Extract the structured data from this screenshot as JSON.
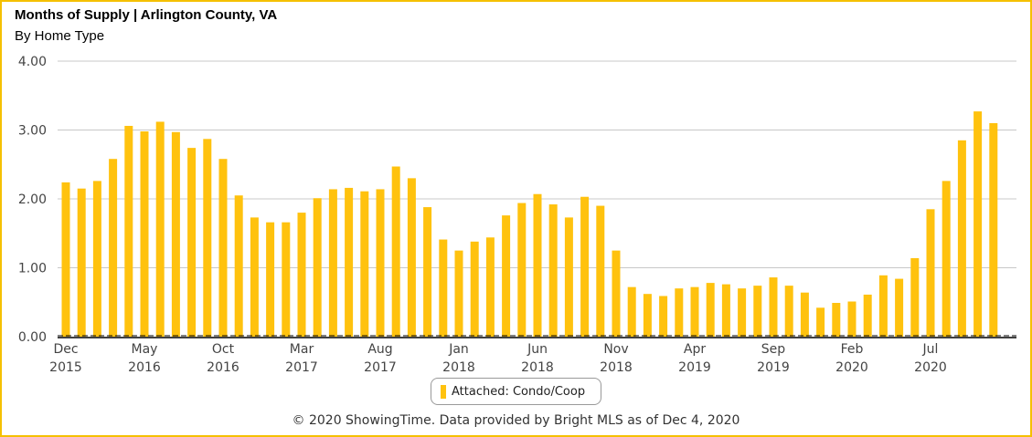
{
  "header": {
    "title": "Months of Supply | Arlington County, VA",
    "subtitle": "By Home Type"
  },
  "footer": {
    "credit": "© 2020 ShowingTime. Data provided by Bright MLS as of Dec 4, 2020"
  },
  "legend": {
    "label": "Attached: Condo/Coop"
  },
  "colors": {
    "bar": "#ffc20e",
    "grid": "#c8c8c8",
    "frame": "#f5c000",
    "baseline": "#000000"
  },
  "chart_data": {
    "type": "bar",
    "title": "Months of Supply | Arlington County, VA",
    "subtitle": "By Home Type",
    "ylim": [
      0,
      4
    ],
    "yticks": [
      "0.00",
      "1.00",
      "2.00",
      "3.00",
      "4.00"
    ],
    "grid": true,
    "legend_position": "bottom-center",
    "xtick_labels": [
      {
        "index": 0,
        "month": "Dec",
        "year": "2015"
      },
      {
        "index": 5,
        "month": "May",
        "year": "2016"
      },
      {
        "index": 10,
        "month": "Oct",
        "year": "2016"
      },
      {
        "index": 15,
        "month": "Mar",
        "year": "2017"
      },
      {
        "index": 20,
        "month": "Aug",
        "year": "2017"
      },
      {
        "index": 25,
        "month": "Jan",
        "year": "2018"
      },
      {
        "index": 30,
        "month": "Jun",
        "year": "2018"
      },
      {
        "index": 35,
        "month": "Nov",
        "year": "2018"
      },
      {
        "index": 40,
        "month": "Apr",
        "year": "2019"
      },
      {
        "index": 45,
        "month": "Sep",
        "year": "2019"
      },
      {
        "index": 50,
        "month": "Feb",
        "year": "2020"
      },
      {
        "index": 55,
        "month": "Jul",
        "year": "2020"
      }
    ],
    "categories": [
      "Dec 2015",
      "Jan 2016",
      "Feb 2016",
      "Mar 2016",
      "Apr 2016",
      "May 2016",
      "Jun 2016",
      "Jul 2016",
      "Aug 2016",
      "Sep 2016",
      "Oct 2016",
      "Nov 2016",
      "Dec 2016",
      "Jan 2017",
      "Feb 2017",
      "Mar 2017",
      "Apr 2017",
      "May 2017",
      "Jun 2017",
      "Jul 2017",
      "Aug 2017",
      "Sep 2017",
      "Oct 2017",
      "Nov 2017",
      "Dec 2017",
      "Jan 2018",
      "Feb 2018",
      "Mar 2018",
      "Apr 2018",
      "May 2018",
      "Jun 2018",
      "Jul 2018",
      "Aug 2018",
      "Sep 2018",
      "Oct 2018",
      "Nov 2018",
      "Dec 2018",
      "Jan 2019",
      "Feb 2019",
      "Mar 2019",
      "Apr 2019",
      "May 2019",
      "Jun 2019",
      "Jul 2019",
      "Aug 2019",
      "Sep 2019",
      "Oct 2019",
      "Nov 2019",
      "Dec 2019",
      "Jan 2020",
      "Feb 2020",
      "Mar 2020",
      "Apr 2020",
      "May 2020",
      "Jun 2020",
      "Jul 2020",
      "Aug 2020",
      "Sep 2020",
      "Oct 2020",
      "Nov 2020",
      "Dec 2020"
    ],
    "series": [
      {
        "name": "Attached: Condo/Coop",
        "values": [
          2.24,
          2.15,
          2.26,
          2.58,
          3.06,
          2.98,
          3.12,
          2.97,
          2.74,
          2.87,
          2.58,
          2.05,
          1.73,
          1.66,
          1.66,
          1.8,
          2.01,
          2.14,
          2.16,
          2.11,
          2.14,
          2.47,
          2.3,
          1.88,
          1.41,
          1.25,
          1.38,
          1.44,
          1.76,
          1.94,
          2.07,
          1.92,
          1.73,
          2.03,
          1.9,
          1.25,
          0.72,
          0.62,
          0.59,
          0.7,
          0.72,
          0.78,
          0.76,
          0.7,
          0.74,
          0.86,
          0.74,
          0.64,
          0.42,
          0.49,
          0.51,
          0.61,
          0.89,
          0.84,
          1.14,
          1.85,
          2.26,
          2.85,
          3.27,
          3.1,
          0.0
        ]
      }
    ]
  }
}
